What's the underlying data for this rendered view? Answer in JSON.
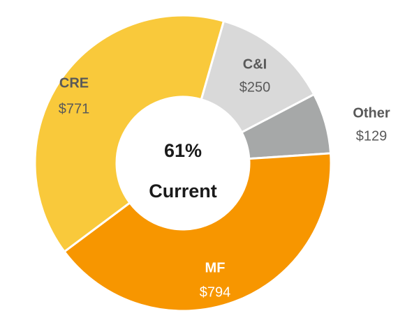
{
  "chart_data": {
    "type": "donut",
    "categories": [
      "C&I",
      "Other",
      "MF",
      "CRE"
    ],
    "values": [
      250,
      129,
      794,
      771
    ],
    "value_labels": [
      "$250",
      "$129",
      "$794",
      "$771"
    ],
    "colors": [
      "#d9d9d9",
      "#a6a8a8",
      "#f79600",
      "#f9c93b"
    ],
    "center_label": "61%",
    "center_sublabel": "Current"
  }
}
